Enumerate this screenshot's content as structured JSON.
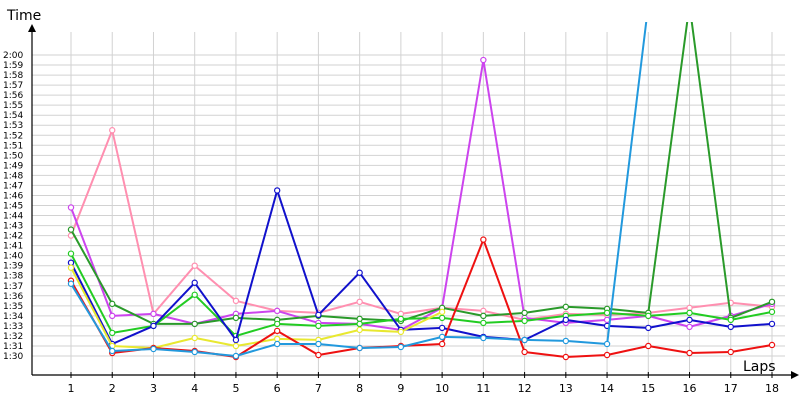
{
  "chart_data": {
    "type": "line",
    "title": "",
    "ylabel": "Time",
    "xlabel": "Laps",
    "x": [
      1,
      2,
      3,
      4,
      5,
      6,
      7,
      8,
      9,
      10,
      11,
      12,
      13,
      14,
      15,
      16,
      17,
      18
    ],
    "y_ticks": [
      "1:30",
      "1:31",
      "1:32",
      "1:33",
      "1:34",
      "1:35",
      "1:36",
      "1:37",
      "1:38",
      "1:39",
      "1:40",
      "1:41",
      "1:42",
      "1:43",
      "1:44",
      "1:45",
      "1:46",
      "1:47",
      "1:48",
      "1:49",
      "1:50",
      "1:51",
      "1:52",
      "1:53",
      "1:54",
      "1:55",
      "1:56",
      "1:57",
      "1:58",
      "1:59",
      "2:00"
    ],
    "ylim_seconds": [
      90,
      120
    ],
    "units": "seconds",
    "grid": true,
    "series": [
      {
        "color": "#ff8fb0",
        "values": [
          102.0,
          112.5,
          94.2,
          99.0,
          95.5,
          94.5,
          94.3,
          95.4,
          94.2,
          94.8,
          94.5,
          93.6,
          94.2,
          94.1,
          94.3,
          94.8,
          95.3,
          94.9
        ]
      },
      {
        "color": "#cc44ee",
        "values": [
          104.8,
          94.0,
          94.2,
          93.2,
          94.2,
          94.5,
          93.3,
          93.2,
          92.6,
          94.8,
          119.5,
          93.8,
          93.3,
          93.6,
          94.0,
          92.9,
          94.0,
          95.2
        ]
      },
      {
        "color": "#2a9a2a",
        "values": [
          102.6,
          95.2,
          93.2,
          93.2,
          93.8,
          93.6,
          94.0,
          93.7,
          93.5,
          94.8,
          94.0,
          94.3,
          94.9,
          94.7,
          94.3,
          125.0,
          93.8,
          95.4
        ]
      },
      {
        "color": "#22cc22",
        "values": [
          100.2,
          92.3,
          93.0,
          96.1,
          92.0,
          93.2,
          93.0,
          93.2,
          93.7,
          93.8,
          93.3,
          93.5,
          94.0,
          94.3,
          94.0,
          94.3,
          93.6,
          94.4
        ]
      },
      {
        "color": "#1111cc",
        "values": [
          99.3,
          91.2,
          93.0,
          97.3,
          91.6,
          106.5,
          94.1,
          98.3,
          92.6,
          92.8,
          91.9,
          91.6,
          93.6,
          93.0,
          92.8,
          93.6,
          92.9,
          93.2
        ]
      },
      {
        "color": "#e8e830",
        "values": [
          98.8,
          91.0,
          90.8,
          91.8,
          91.0,
          91.7,
          91.6,
          92.6,
          92.4,
          94.4,
          null,
          null,
          null,
          null,
          null,
          null,
          null,
          null
        ]
      },
      {
        "color": "#ee1111",
        "values": [
          97.5,
          90.3,
          90.8,
          90.5,
          89.9,
          92.5,
          90.1,
          90.8,
          91.0,
          91.2,
          101.6,
          90.4,
          89.9,
          90.1,
          91.0,
          90.3,
          90.4,
          91.1
        ]
      },
      {
        "color": "#2299dd",
        "values": [
          97.2,
          90.5,
          90.7,
          90.4,
          90.0,
          91.2,
          91.2,
          90.8,
          90.9,
          91.9,
          91.8,
          91.6,
          91.5,
          91.2,
          125.0,
          null,
          null,
          null
        ]
      }
    ]
  }
}
